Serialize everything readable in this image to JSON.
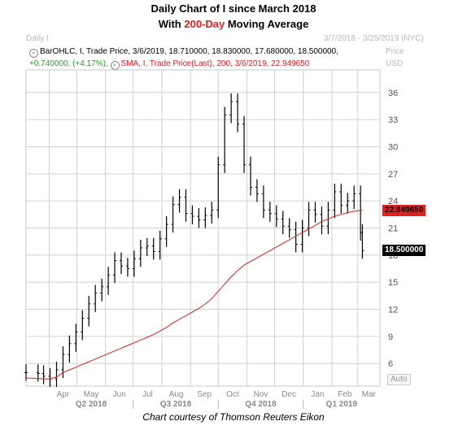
{
  "header": {
    "title_line1": "Daily Chart of I since March 2018",
    "title_line2_pre": "With ",
    "title_line2_highlight": "200-Day",
    "title_line2_post": " Moving Average",
    "period_label": "Daily I",
    "date_range": "3/7/2018 - 3/25/2019 (NYC)",
    "axis_title": "Price",
    "axis_unit": "USD"
  },
  "legend": {
    "ohlc_text": "BarOHLC, I, Trade Price, 3/6/2019, 18.710000, 18.830000, 17.680000, 18.500000,",
    "change_text": "+0.740000, (+4.17%),",
    "sma_text": "SMA, I, Trade Price(Last), 200, 3/6/2019, 22.949650"
  },
  "caption": "Chart courtesy of Thomson Reuters Eikon",
  "auto_button": "Auto",
  "colors": {
    "price_bars": "#000000",
    "sma_line": "#e02020",
    "change_text": "#2a9a2a",
    "grid": "#d0d0d0"
  },
  "chart_data": {
    "type": "line",
    "y_ticks": [
      "36",
      "33",
      "30",
      "27",
      "24",
      "21",
      "18",
      "15",
      "12",
      "9",
      "6"
    ],
    "y_tick_values": [
      36,
      33,
      30,
      27,
      24,
      21,
      18,
      15,
      12,
      9,
      6
    ],
    "ylim": [
      3.5,
      38.5
    ],
    "month_labels": [
      "Apr",
      "May",
      "Jun",
      "Jul",
      "Aug",
      "Sep",
      "Oct",
      "Nov",
      "Dec",
      "Jan",
      "Feb",
      "Mar"
    ],
    "quarter_labels": [
      "Q2 2018",
      "Q3 2018",
      "Q4 2018",
      "Q1 2019"
    ],
    "x_dates": [
      "2018-03-07",
      "2018-03-20",
      "2018-03-26",
      "2018-04-02",
      "2018-04-09",
      "2018-04-16",
      "2018-04-23",
      "2018-04-30",
      "2018-05-07",
      "2018-05-14",
      "2018-05-21",
      "2018-05-28",
      "2018-06-04",
      "2018-06-11",
      "2018-06-18",
      "2018-06-25",
      "2018-07-02",
      "2018-07-09",
      "2018-07-16",
      "2018-07-23",
      "2018-07-30",
      "2018-08-06",
      "2018-08-13",
      "2018-08-20",
      "2018-08-27",
      "2018-09-03",
      "2018-09-10",
      "2018-09-17",
      "2018-09-24",
      "2018-10-01",
      "2018-10-08",
      "2018-10-15",
      "2018-10-22",
      "2018-10-29",
      "2018-11-05",
      "2018-11-12",
      "2018-11-19",
      "2018-11-26",
      "2018-12-03",
      "2018-12-10",
      "2018-12-17",
      "2018-12-24",
      "2018-12-31",
      "2019-01-07",
      "2019-01-14",
      "2019-01-21",
      "2019-01-28",
      "2019-02-04",
      "2019-02-11",
      "2019-02-18",
      "2019-02-25",
      "2019-03-04",
      "2019-03-06"
    ],
    "series": [
      {
        "name": "BarOHLC, I, Trade Price",
        "values": [
          5.0,
          4.9,
          4.6,
          4.3,
          5.3,
          7.0,
          8.2,
          9.5,
          11.0,
          12.6,
          13.8,
          14.5,
          15.8,
          17.4,
          16.8,
          16.5,
          17.6,
          18.8,
          19.0,
          18.4,
          19.8,
          21.4,
          23.6,
          24.4,
          22.6,
          22.3,
          21.9,
          22.4,
          23.0,
          28.0,
          33.5,
          35.0,
          32.5,
          28.0,
          25.5,
          24.8,
          23.0,
          22.6,
          22.0,
          21.2,
          20.8,
          19.2,
          21.0,
          23.0,
          22.5,
          21.2,
          23.0,
          25.0,
          23.5,
          24.0,
          24.8,
          20.5,
          18.5
        ]
      },
      {
        "name": "SMA, I, Trade Price(Last), 200",
        "values": [
          4.4,
          4.35,
          4.3,
          4.3,
          4.5,
          5.0,
          5.3,
          5.6,
          5.9,
          6.2,
          6.5,
          6.8,
          7.1,
          7.4,
          7.7,
          8.0,
          8.3,
          8.6,
          8.9,
          9.2,
          9.6,
          10.0,
          10.5,
          10.9,
          11.3,
          11.7,
          12.1,
          12.6,
          13.2,
          14.0,
          14.8,
          15.6,
          16.3,
          16.9,
          17.3,
          17.7,
          18.1,
          18.5,
          18.9,
          19.3,
          19.7,
          20.1,
          20.5,
          20.9,
          21.3,
          21.7,
          22.0,
          22.3,
          22.5,
          22.7,
          22.85,
          22.93,
          22.94965
        ]
      }
    ],
    "last_price_label": "18.500000",
    "sma_label": "22.949650",
    "grid": true
  }
}
